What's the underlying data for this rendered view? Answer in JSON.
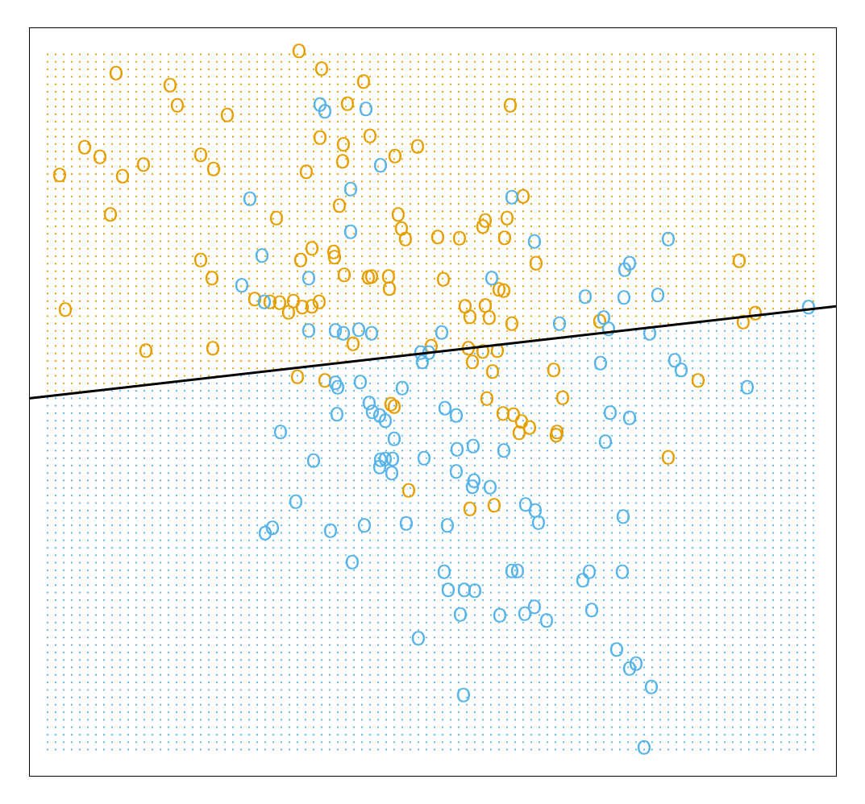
{
  "chart_data": {
    "type": "scatter",
    "title": "",
    "xlabel": "",
    "ylabel": "",
    "xlim": [
      0,
      100
    ],
    "ylim": [
      0,
      100
    ],
    "grid": false,
    "background_grid": true,
    "marker_glyph": "O",
    "colors": {
      "class0": "#E69F00",
      "class1": "#56B4E9",
      "boundary": "#000000"
    },
    "boundary": {
      "x": [
        0,
        100
      ],
      "y": [
        50.5,
        62.8
      ]
    },
    "series": [
      {
        "class": "class0",
        "points": [
          [
            33.4,
            96.9
          ],
          [
            36.2,
            94.5
          ],
          [
            41.4,
            92.8
          ],
          [
            10.7,
            93.9
          ],
          [
            17.4,
            92.3
          ],
          [
            18.3,
            89.6
          ],
          [
            24.5,
            88.3
          ],
          [
            39.4,
            89.8
          ],
          [
            59.6,
            89.6
          ],
          [
            36.0,
            85.3
          ],
          [
            38.9,
            84.4
          ],
          [
            42.2,
            85.5
          ],
          [
            48.1,
            84.1
          ],
          [
            6.8,
            84.0
          ],
          [
            8.7,
            82.7
          ],
          [
            21.2,
            83.0
          ],
          [
            38.8,
            82.1
          ],
          [
            45.3,
            82.8
          ],
          [
            3.7,
            80.3
          ],
          [
            11.5,
            80.1
          ],
          [
            14.1,
            81.7
          ],
          [
            22.8,
            81.1
          ],
          [
            34.3,
            80.7
          ],
          [
            61.2,
            77.4
          ],
          [
            38.4,
            76.2
          ],
          [
            45.7,
            75.0
          ],
          [
            30.6,
            74.5
          ],
          [
            10.0,
            75.0
          ],
          [
            56.5,
            74.2
          ],
          [
            59.2,
            74.5
          ],
          [
            46.1,
            73.1
          ],
          [
            46.6,
            71.7
          ],
          [
            50.6,
            72.0
          ],
          [
            53.3,
            71.8
          ],
          [
            56.2,
            73.4
          ],
          [
            58.9,
            71.9
          ],
          [
            35.0,
            70.5
          ],
          [
            37.7,
            70.0
          ],
          [
            37.8,
            69.3
          ],
          [
            21.2,
            68.9
          ],
          [
            33.6,
            68.9
          ],
          [
            62.8,
            68.5
          ],
          [
            88.0,
            68.8
          ],
          [
            22.6,
            66.5
          ],
          [
            39.0,
            66.9
          ],
          [
            42.0,
            66.6
          ],
          [
            44.6,
            65.1
          ],
          [
            42.4,
            66.7
          ],
          [
            44.5,
            66.7
          ],
          [
            51.3,
            66.3
          ],
          [
            58.2,
            65.0
          ],
          [
            58.8,
            64.8
          ],
          [
            27.9,
            63.7
          ],
          [
            29.8,
            63.3
          ],
          [
            31.0,
            63.2
          ],
          [
            32.7,
            63.4
          ],
          [
            33.8,
            62.6
          ],
          [
            35.0,
            62.7
          ],
          [
            35.9,
            63.3
          ],
          [
            32.1,
            61.9
          ],
          [
            4.4,
            62.3
          ],
          [
            54.0,
            62.7
          ],
          [
            56.5,
            62.8
          ],
          [
            54.6,
            61.3
          ],
          [
            57.0,
            61.2
          ],
          [
            70.7,
            60.7
          ],
          [
            59.8,
            60.4
          ],
          [
            88.5,
            60.6
          ],
          [
            90.0,
            61.8
          ],
          [
            40.1,
            57.7
          ],
          [
            49.8,
            57.4
          ],
          [
            54.4,
            57.1
          ],
          [
            56.2,
            56.7
          ],
          [
            58.0,
            56.8
          ],
          [
            14.4,
            56.8
          ],
          [
            22.7,
            57.1
          ],
          [
            54.9,
            55.3
          ],
          [
            57.4,
            54.0
          ],
          [
            33.2,
            53.3
          ],
          [
            36.6,
            52.8
          ],
          [
            65.0,
            54.2
          ],
          [
            82.9,
            52.8
          ],
          [
            56.7,
            50.4
          ],
          [
            66.1,
            50.5
          ],
          [
            45.2,
            49.3
          ],
          [
            44.8,
            49.6
          ],
          [
            60.0,
            48.2
          ],
          [
            58.7,
            48.4
          ],
          [
            61.0,
            47.3
          ],
          [
            62.0,
            46.5
          ],
          [
            60.7,
            45.8
          ],
          [
            65.3,
            45.5
          ],
          [
            65.4,
            45.9
          ],
          [
            79.2,
            42.5
          ],
          [
            47.0,
            38.1
          ],
          [
            54.6,
            35.6
          ],
          [
            57.6,
            36.1
          ]
        ]
      },
      {
        "class": "class1",
        "points": [
          [
            36.0,
            89.7
          ],
          [
            36.6,
            88.8
          ],
          [
            41.7,
            89.1
          ],
          [
            43.5,
            81.6
          ],
          [
            39.8,
            78.4
          ],
          [
            27.3,
            77.1
          ],
          [
            59.8,
            77.3
          ],
          [
            39.8,
            72.7
          ],
          [
            62.6,
            71.4
          ],
          [
            79.2,
            71.7
          ],
          [
            28.8,
            69.5
          ],
          [
            74.4,
            68.5
          ],
          [
            73.8,
            67.6
          ],
          [
            34.6,
            66.5
          ],
          [
            57.3,
            66.5
          ],
          [
            26.3,
            65.5
          ],
          [
            68.9,
            64.0
          ],
          [
            73.7,
            63.9
          ],
          [
            77.9,
            64.2
          ],
          [
            96.6,
            62.6
          ],
          [
            29.1,
            63.3
          ],
          [
            71.2,
            61.2
          ],
          [
            71.8,
            59.7
          ],
          [
            65.7,
            60.4
          ],
          [
            34.6,
            59.5
          ],
          [
            37.9,
            59.5
          ],
          [
            38.9,
            59.1
          ],
          [
            40.8,
            59.6
          ],
          [
            42.4,
            59.1
          ],
          [
            51.1,
            59.2
          ],
          [
            76.9,
            59.1
          ],
          [
            48.5,
            56.5
          ],
          [
            49.5,
            56.5
          ],
          [
            48.7,
            55.3
          ],
          [
            70.8,
            55.1
          ],
          [
            80.0,
            55.5
          ],
          [
            80.8,
            54.2
          ],
          [
            37.9,
            52.5
          ],
          [
            38.2,
            51.9
          ],
          [
            41.0,
            52.6
          ],
          [
            46.2,
            51.8
          ],
          [
            89.0,
            51.9
          ],
          [
            42.1,
            49.8
          ],
          [
            38.1,
            48.3
          ],
          [
            42.5,
            48.6
          ],
          [
            43.4,
            48.1
          ],
          [
            44.1,
            47.4
          ],
          [
            51.5,
            49.1
          ],
          [
            52.9,
            48.1
          ],
          [
            72.0,
            48.5
          ],
          [
            74.4,
            47.8
          ],
          [
            31.1,
            45.9
          ],
          [
            45.2,
            45.0
          ],
          [
            71.4,
            44.6
          ],
          [
            53.0,
            43.6
          ],
          [
            55.0,
            44.0
          ],
          [
            58.8,
            43.4
          ],
          [
            35.2,
            42.1
          ],
          [
            43.5,
            42.2
          ],
          [
            44.1,
            42.3
          ],
          [
            45.0,
            42.3
          ],
          [
            48.9,
            42.4
          ],
          [
            43.4,
            41.2
          ],
          [
            44.9,
            40.4
          ],
          [
            52.9,
            40.6
          ],
          [
            55.1,
            39.4
          ],
          [
            54.9,
            38.6
          ],
          [
            57.1,
            38.5
          ],
          [
            33.0,
            36.6
          ],
          [
            61.5,
            36.2
          ],
          [
            62.7,
            35.4
          ],
          [
            73.6,
            34.6
          ],
          [
            30.1,
            33.1
          ],
          [
            37.3,
            32.7
          ],
          [
            41.5,
            33.4
          ],
          [
            46.7,
            33.7
          ],
          [
            51.8,
            33.4
          ],
          [
            63.1,
            33.8
          ],
          [
            29.2,
            32.4
          ],
          [
            40.0,
            28.5
          ],
          [
            51.4,
            27.2
          ],
          [
            59.8,
            27.3
          ],
          [
            60.5,
            27.3
          ],
          [
            69.4,
            27.2
          ],
          [
            73.5,
            27.2
          ],
          [
            68.6,
            26.1
          ],
          [
            51.9,
            24.8
          ],
          [
            53.9,
            24.8
          ],
          [
            55.2,
            24.7
          ],
          [
            62.6,
            22.5
          ],
          [
            69.7,
            22.1
          ],
          [
            53.4,
            21.5
          ],
          [
            58.3,
            21.4
          ],
          [
            61.4,
            21.6
          ],
          [
            64.1,
            20.7
          ],
          [
            48.2,
            18.3
          ],
          [
            72.8,
            16.8
          ],
          [
            75.2,
            14.9
          ],
          [
            74.4,
            14.3
          ],
          [
            77.1,
            11.8
          ],
          [
            53.8,
            10.7
          ],
          [
            76.2,
            3.7
          ]
        ]
      }
    ]
  }
}
